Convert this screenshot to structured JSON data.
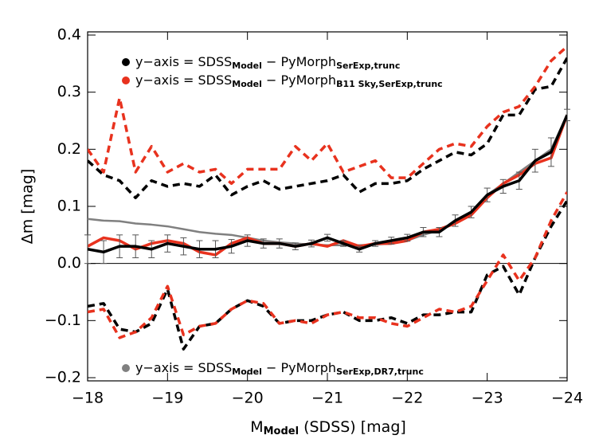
{
  "chart_data": {
    "type": "line",
    "x_label": [
      "M",
      "Model",
      "  (SDSS)  [mag]"
    ],
    "y_label": "Δm  [mag]",
    "x": [
      -18,
      -18.2,
      -18.4,
      -18.6,
      -18.8,
      -19,
      -19.2,
      -19.4,
      -19.6,
      -19.8,
      -20,
      -20.2,
      -20.4,
      -20.6,
      -20.8,
      -21,
      -21.2,
      -21.4,
      -21.6,
      -21.8,
      -22,
      -22.2,
      -22.4,
      -22.6,
      -22.8,
      -23,
      -23.2,
      -23.4,
      -23.6,
      -23.8,
      -24
    ],
    "xlim": [
      -18,
      -24
    ],
    "xticks": [
      {
        "value": -18,
        "label": "−18"
      },
      {
        "value": -19,
        "label": "−19"
      },
      {
        "value": -20,
        "label": "−20"
      },
      {
        "value": -21,
        "label": "−21"
      },
      {
        "value": -22,
        "label": "−22"
      },
      {
        "value": -23,
        "label": "−23"
      },
      {
        "value": -24,
        "label": "−24"
      }
    ],
    "ylim": [
      -0.2056,
      0.4056
    ],
    "yticks": [
      {
        "value": -0.2,
        "label": "−0.2"
      },
      {
        "value": -0.1,
        "label": "−0.1"
      },
      {
        "value": 0,
        "label": "0.0"
      },
      0.1,
      0.2,
      0.3,
      0.4
    ],
    "series": [
      {
        "name": [
          "y−axis = SDSS",
          "Model",
          " − PyMorph",
          "SerExp,trunc"
        ],
        "legend": "upper left",
        "color": "#000000",
        "dash": false,
        "values": [
          0.025,
          0.02,
          0.03,
          0.03,
          0.025,
          0.035,
          0.03,
          0.025,
          0.025,
          0.03,
          0.04,
          0.035,
          0.035,
          0.03,
          0.035,
          0.045,
          0.035,
          0.025,
          0.035,
          0.04,
          0.045,
          0.055,
          0.055,
          0.075,
          0.09,
          0.12,
          0.135,
          0.145,
          0.18,
          0.195,
          0.26
        ],
        "errors": [
          0.025,
          0.02,
          0.02,
          0.02,
          0.015,
          0.015,
          0.015,
          0.015,
          0.015,
          0.012,
          0.01,
          0.008,
          0.008,
          0.006,
          0.006,
          0.006,
          0.005,
          0.005,
          0.005,
          0.006,
          0.006,
          0.008,
          0.008,
          0.01,
          0.01,
          0.012,
          0.012,
          0.015,
          0.02,
          0.025,
          0.01
        ]
      },
      {
        "name": [
          "y−axis = SDSS",
          "Model",
          " − PyMorph",
          "B11 Sky,SerExp,trunc"
        ],
        "legend": "upper left",
        "color": "#e8321e",
        "dash": false,
        "values": [
          0.03,
          0.045,
          0.04,
          0.025,
          0.035,
          0.04,
          0.035,
          0.02,
          0.015,
          0.035,
          0.045,
          0.035,
          0.035,
          0.03,
          0.035,
          0.03,
          0.04,
          0.03,
          0.035,
          0.035,
          0.04,
          0.055,
          0.06,
          0.07,
          0.085,
          0.115,
          0.14,
          0.155,
          0.175,
          0.185,
          0.26
        ]
      },
      {
        "name": [
          "y−axis = SDSS",
          "Model",
          " − PyMorph",
          "SerExp,DR7,trunc"
        ],
        "legend": "lower left",
        "color": "#808080",
        "dash": false,
        "values": [
          0.078,
          0.075,
          0.074,
          0.07,
          0.068,
          0.065,
          0.06,
          0.055,
          0.052,
          0.05,
          0.045,
          0.04,
          0.037,
          0.035,
          0.033,
          0.032,
          0.032,
          0.032,
          0.033,
          0.035,
          0.04,
          0.05,
          0.058,
          0.07,
          0.085,
          0.12,
          0.14,
          0.16,
          0.18,
          0.2,
          0.26
        ]
      },
      {
        "color": "#000000",
        "dash": true,
        "values": [
          0.18,
          0.155,
          0.145,
          0.115,
          0.145,
          0.135,
          0.14,
          0.135,
          0.155,
          0.12,
          0.135,
          0.145,
          0.13,
          0.135,
          0.14,
          0.145,
          0.155,
          0.125,
          0.14,
          0.14,
          0.145,
          0.165,
          0.18,
          0.195,
          0.19,
          0.21,
          0.26,
          0.26,
          0.305,
          0.31,
          0.36
        ]
      },
      {
        "color": "#e8321e",
        "dash": true,
        "values": [
          0.2,
          0.16,
          0.29,
          0.16,
          0.205,
          0.16,
          0.175,
          0.16,
          0.165,
          0.14,
          0.165,
          0.165,
          0.165,
          0.205,
          0.18,
          0.21,
          0.16,
          0.17,
          0.18,
          0.15,
          0.15,
          0.175,
          0.2,
          0.21,
          0.205,
          0.24,
          0.265,
          0.275,
          0.31,
          0.355,
          0.38
        ]
      },
      {
        "color": "#000000",
        "dash": true,
        "values": [
          -0.075,
          -0.07,
          -0.115,
          -0.12,
          -0.105,
          -0.045,
          -0.15,
          -0.11,
          -0.105,
          -0.08,
          -0.065,
          -0.075,
          -0.105,
          -0.1,
          -0.1,
          -0.09,
          -0.085,
          -0.1,
          -0.1,
          -0.095,
          -0.105,
          -0.09,
          -0.09,
          -0.085,
          -0.085,
          -0.02,
          -0.005,
          -0.055,
          0.01,
          0.065,
          0.11
        ]
      },
      {
        "color": "#e8321e",
        "dash": true,
        "values": [
          -0.085,
          -0.08,
          -0.13,
          -0.12,
          -0.095,
          -0.04,
          -0.125,
          -0.11,
          -0.105,
          -0.08,
          -0.065,
          -0.07,
          -0.105,
          -0.1,
          -0.105,
          -0.09,
          -0.085,
          -0.095,
          -0.095,
          -0.105,
          -0.11,
          -0.095,
          -0.08,
          -0.085,
          -0.075,
          -0.03,
          0.015,
          -0.03,
          0.01,
          0.075,
          0.125
        ]
      }
    ]
  }
}
